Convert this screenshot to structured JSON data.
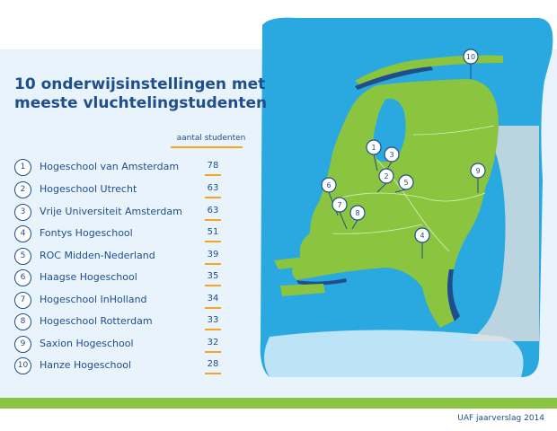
{
  "title": "10 onderwijsinstellingen met meeste vluchtelingstudenten",
  "column_header": "aantal studenten",
  "footer": "UAF jaarverslag 2014",
  "colors": {
    "title": "#1f4e8c",
    "accent_orange": "#f5a623",
    "land_green": "#8bc53f",
    "sea_blue": "#2aa8e0",
    "panel_bg": "#e9f3fb"
  },
  "rankings": [
    {
      "rank": "1",
      "name": "Hogeschool van Amsterdam",
      "students": "78"
    },
    {
      "rank": "2",
      "name": "Hogeschool Utrecht",
      "students": "63"
    },
    {
      "rank": "3",
      "name": "Vrije Universiteit Amsterdam",
      "students": "63"
    },
    {
      "rank": "4",
      "name": "Fontys Hogeschool",
      "students": "51"
    },
    {
      "rank": "5",
      "name": "ROC Midden-Nederland",
      "students": "39"
    },
    {
      "rank": "6",
      "name": "Haagse Hogeschool",
      "students": "35"
    },
    {
      "rank": "7",
      "name": "Hogeschool InHolland",
      "students": "34"
    },
    {
      "rank": "8",
      "name": "Hogeschool Rotterdam",
      "students": "33"
    },
    {
      "rank": "9",
      "name": "Saxion Hogeschool",
      "students": "32"
    },
    {
      "rank": "10",
      "name": "Hanze Hogeschool",
      "students": "28"
    }
  ],
  "map_markers": [
    "10",
    "1",
    "3",
    "2",
    "5",
    "9",
    "6",
    "7",
    "8",
    "4"
  ]
}
